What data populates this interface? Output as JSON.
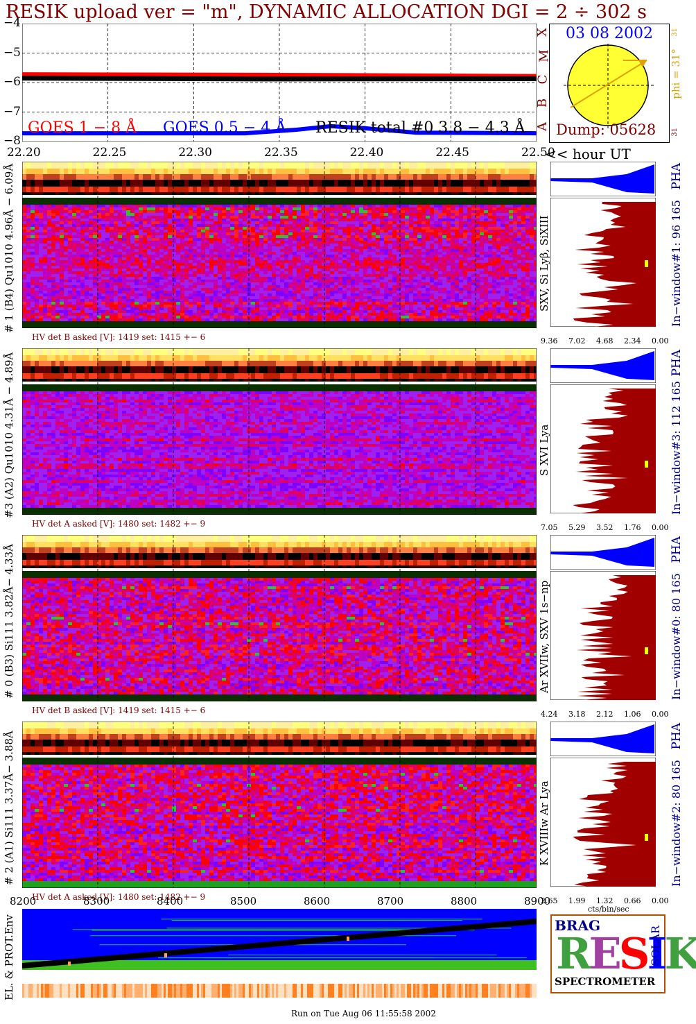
{
  "title": "RESIK upload ver = \"m\", DYNAMIC ALLOCATION  DGI =   2 ÷ 302 s",
  "chart_data": [
    {
      "type": "line",
      "name": "goes-lightcurve",
      "ylim": [
        -8,
        -4
      ],
      "yticks": [
        "−4",
        "−5",
        "−6",
        "−7",
        "−8"
      ],
      "xlim": [
        22.2,
        22.5
      ],
      "xticks": [
        "22.20",
        "22.25",
        "22.30",
        "22.35",
        "22.40",
        "22.45",
        "22.50"
      ],
      "xlabel": "<< hour UT",
      "legend": [
        {
          "label": "GOES 1 − 8 Å",
          "color": "#ff0000"
        },
        {
          "label": "GOES 0.5 − 4 Å",
          "color": "#0000ff"
        },
        {
          "label": "RESIK total #0  3.8 − 4.3 Å",
          "color": "#000000"
        }
      ],
      "series": [
        {
          "name": "GOES 1 − 8 Å",
          "color": "#ff0000",
          "x": [
            22.2,
            22.35,
            22.5
          ],
          "y": [
            -5.72,
            -5.74,
            -5.78
          ]
        },
        {
          "name": "RESIK total #0  3.8 − 4.3 Å",
          "color": "#000000",
          "x": [
            22.2,
            22.35,
            22.5
          ],
          "y": [
            -5.85,
            -5.88,
            -5.87
          ]
        },
        {
          "name": "GOES 0.5 − 4 Å",
          "color": "#0000ff",
          "x": [
            22.2,
            22.33,
            22.36,
            22.38,
            22.4,
            22.43,
            22.5
          ],
          "y": [
            -7.72,
            -7.72,
            -7.6,
            -7.48,
            -7.55,
            -7.7,
            -7.72
          ]
        }
      ]
    },
    {
      "type": "heatmap",
      "name": "channel-1",
      "left_label": "# 1 (B4) Qu1010 4.96Å − 6.09Å",
      "right_label": "SXV, Si Lyβ, SiXIII",
      "window_label": "In−window#1:  96 165",
      "pha_label": "PHA",
      "hv_text": "HV det B asked [V]:  1419 set:  1415 +−    6",
      "pha_xticks": [
        "9.36",
        "7.02",
        "4.68",
        "2.34",
        "0.00"
      ]
    },
    {
      "type": "heatmap",
      "name": "channel-3",
      "left_label": "#3 (A2) Qu1010  4.31Å − 4.89Å",
      "right_label": "S XVI Lya",
      "window_label": "In−window#3:  112 165",
      "pha_label": "PHA",
      "hv_text": "HV det A asked [V]:  1480 set:  1482 +−    9",
      "pha_xticks": [
        "7.05",
        "5.29",
        "3.52",
        "1.76",
        "0.00"
      ]
    },
    {
      "type": "heatmap",
      "name": "channel-0",
      "left_label": "# 0 (B3) Si111  3.82Å− 4.33Å",
      "right_label": "Ar XVIIw,  SXV 1s−np",
      "window_label": "In−window#0:   80 165",
      "pha_label": "PHA",
      "hv_text": "HV det B asked [V]:  1419 set:  1415 +−    6",
      "pha_xticks": [
        "4.24",
        "3.18",
        "2.12",
        "1.06",
        "0.00"
      ]
    },
    {
      "type": "heatmap",
      "name": "channel-2",
      "left_label": "# 2 (A1) Si111  3.37Å− 3.88Å",
      "right_label": "K XVIIIw  Ar Lya",
      "window_label": "In−window#2:   80 165",
      "pha_label": "PHA",
      "hv_text": "HV det A asked [V]:  1480 set:  1482 +−    9",
      "pha_xticks": [
        "2.65",
        "1.99",
        "1.32",
        "0.66",
        "0.00"
      ],
      "pha_xlabel": "cts/bin/sec"
    },
    {
      "type": "line",
      "name": "el-prot-env",
      "ylabel": "EL. & PROT.Env",
      "xlim": [
        8200,
        8900
      ],
      "xticks": [
        "8200",
        "8300",
        "8400",
        "8500",
        "8600",
        "8700",
        "8800",
        "8900"
      ]
    }
  ],
  "orbit": {
    "date": "03 08 2002",
    "dump": "Dump: 05628",
    "phi": "phi = 31°",
    "side_letters": [
      "X",
      "M",
      "C",
      "B",
      "A"
    ],
    "tick_top": "31",
    "tick_bottom": "31"
  },
  "logo": {
    "letters": "RESIK",
    "top_left": "BRAG",
    "right": "SOLAR",
    "caption": "SPECTROMETER"
  },
  "footer": "Run on Tue Aug 06 11:55:58 2002",
  "colors": {
    "title": "#800000",
    "label": "#00008b",
    "pha_fill": "#a00000",
    "pha_top": "#0000ff"
  }
}
